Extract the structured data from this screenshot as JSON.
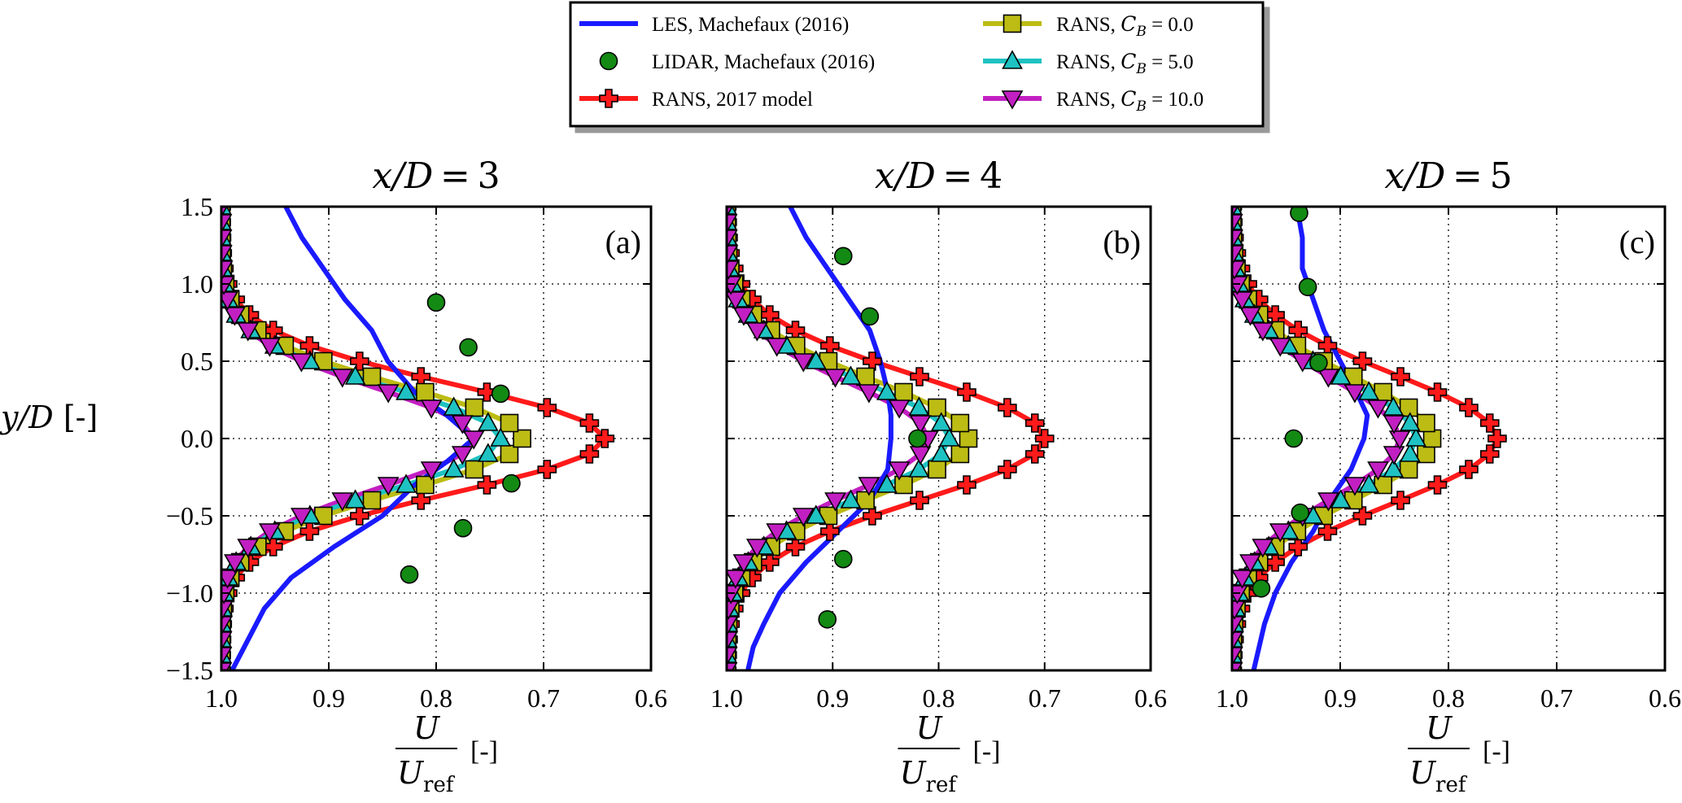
{
  "chart_data": {
    "type": "line",
    "ylabel": "y/D [-]",
    "xlabel": "U / U_ref [-]",
    "xlim": [
      1.0,
      0.6
    ],
    "ylim": [
      -1.5,
      1.5
    ],
    "xticks": [
      "1.0",
      "0.9",
      "0.8",
      "0.7",
      "0.6"
    ],
    "yticks": [
      "1.5",
      "1.0",
      "0.5",
      "0.0",
      "−0.5",
      "−1.0",
      "−1.5"
    ],
    "grid": true,
    "legend_position": "top-center",
    "legend": {
      "les": "LES, Machefaux (2016)",
      "lidar": "LIDAR, Machefaux (2016)",
      "rans2017": "RANS, 2017 model",
      "cb0": "RANS, C_B = 0.0",
      "cb5": "RANS, C_B = 5.0",
      "cb10": "RANS, C_B = 10.0"
    },
    "colors": {
      "les": "#1a1aff",
      "lidar": "#138a13",
      "rans2017": "#ff1a1a",
      "cb0": "#bcbc14",
      "cb5": "#1fc2c2",
      "cb10": "#c21fc2"
    },
    "panels": [
      {
        "title": "x/D = 3",
        "label": "(a)",
        "les": [
          [
            0.94,
            1.5
          ],
          [
            0.925,
            1.3
          ],
          [
            0.905,
            1.1
          ],
          [
            0.885,
            0.9
          ],
          [
            0.86,
            0.7
          ],
          [
            0.845,
            0.5
          ],
          [
            0.82,
            0.3
          ],
          [
            0.79,
            0.15
          ],
          [
            0.765,
            0.0
          ],
          [
            0.79,
            -0.15
          ],
          [
            0.82,
            -0.3
          ],
          [
            0.85,
            -0.5
          ],
          [
            0.895,
            -0.7
          ],
          [
            0.935,
            -0.9
          ],
          [
            0.96,
            -1.1
          ],
          [
            0.975,
            -1.3
          ],
          [
            0.99,
            -1.5
          ]
        ],
        "lidar": [
          [
            0.8,
            0.88
          ],
          [
            0.77,
            0.59
          ],
          [
            0.74,
            0.29
          ],
          [
            0.73,
            -0.29
          ],
          [
            0.775,
            -0.58
          ],
          [
            0.825,
            -0.88
          ]
        ],
        "rans2017": {
          "u_min": 0.643,
          "sigma": 0.35
        },
        "cb0": {
          "u_min": 0.72,
          "sigma": 0.34
        },
        "cb5": {
          "u_min": 0.74,
          "sigma": 0.33
        },
        "cb10": {
          "u_min": 0.765,
          "sigma": 0.33
        }
      },
      {
        "title": "x/D = 4",
        "label": "(b)",
        "les": [
          [
            0.94,
            1.5
          ],
          [
            0.925,
            1.3
          ],
          [
            0.905,
            1.1
          ],
          [
            0.885,
            0.9
          ],
          [
            0.865,
            0.7
          ],
          [
            0.855,
            0.5
          ],
          [
            0.848,
            0.3
          ],
          [
            0.845,
            0.15
          ],
          [
            0.845,
            0.0
          ],
          [
            0.848,
            -0.2
          ],
          [
            0.865,
            -0.4
          ],
          [
            0.895,
            -0.6
          ],
          [
            0.925,
            -0.8
          ],
          [
            0.95,
            -1.0
          ],
          [
            0.965,
            -1.2
          ],
          [
            0.975,
            -1.35
          ],
          [
            0.98,
            -1.5
          ]
        ],
        "lidar": [
          [
            0.89,
            1.18
          ],
          [
            0.865,
            0.79
          ],
          [
            0.82,
            0.0
          ],
          [
            0.89,
            -0.78
          ],
          [
            0.905,
            -1.17
          ]
        ],
        "rans2017": {
          "u_min": 0.7,
          "sigma": 0.4
        },
        "cb0": {
          "u_min": 0.772,
          "sigma": 0.38
        },
        "cb5": {
          "u_min": 0.79,
          "sigma": 0.37
        },
        "cb10": {
          "u_min": 0.81,
          "sigma": 0.36
        }
      },
      {
        "title": "x/D = 5",
        "label": "(c)",
        "les": [
          [
            0.94,
            1.5
          ],
          [
            0.935,
            1.3
          ],
          [
            0.935,
            1.1
          ],
          [
            0.925,
            0.9
          ],
          [
            0.915,
            0.7
          ],
          [
            0.9,
            0.5
          ],
          [
            0.885,
            0.3
          ],
          [
            0.875,
            0.15
          ],
          [
            0.878,
            0.0
          ],
          [
            0.89,
            -0.2
          ],
          [
            0.91,
            -0.4
          ],
          [
            0.925,
            -0.6
          ],
          [
            0.945,
            -0.8
          ],
          [
            0.96,
            -1.0
          ],
          [
            0.97,
            -1.2
          ],
          [
            0.975,
            -1.35
          ],
          [
            0.98,
            -1.5
          ]
        ],
        "lidar": [
          [
            0.938,
            1.46
          ],
          [
            0.93,
            0.98
          ],
          [
            0.92,
            0.49
          ],
          [
            0.943,
            0.0
          ],
          [
            0.937,
            -0.48
          ],
          [
            0.973,
            -0.97
          ]
        ],
        "rans2017": {
          "u_min": 0.755,
          "sigma": 0.42
        },
        "cb0": {
          "u_min": 0.815,
          "sigma": 0.4
        },
        "cb5": {
          "u_min": 0.83,
          "sigma": 0.39
        },
        "cb10": {
          "u_min": 0.845,
          "sigma": 0.38
        }
      }
    ]
  }
}
